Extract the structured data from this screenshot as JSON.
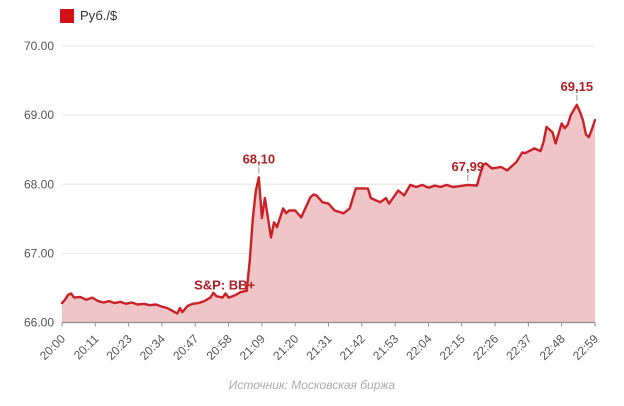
{
  "legend": {
    "label": "Руб./$"
  },
  "source_note": "Источник: Московская биржа",
  "colors": {
    "line": "#C92127",
    "fill": "#EFC5C7",
    "legend_square": "#CE1218",
    "legend_text": "#333333",
    "annotation": "#AE1E23",
    "grid": "#E6E6E6",
    "axis": "#8C8C8C",
    "tick_text": "#555555",
    "leader": "#999999",
    "source_text": "#ABABAB"
  },
  "chart_data": {
    "type": "area",
    "series_name": "Руб./$",
    "title": "",
    "xlabel": "",
    "ylabel": "",
    "ylim": [
      66,
      70
    ],
    "yticks": [
      66,
      67,
      68,
      69,
      70
    ],
    "ytick_labels": [
      "66.00",
      "67.00",
      "68.00",
      "69.00",
      "70.00"
    ],
    "xticks": [
      "20:00",
      "20:11",
      "20:23",
      "20:34",
      "20:47",
      "20:58",
      "21:09",
      "21:20",
      "21:31",
      "21:42",
      "21:53",
      "22:04",
      "22:15",
      "22:26",
      "22:37",
      "22:48",
      "22:59"
    ],
    "grid": "horizontal",
    "legend_position": "top-left",
    "points": [
      [
        "20:00",
        66.28
      ],
      [
        "20:01",
        66.33
      ],
      [
        "20:02",
        66.4
      ],
      [
        "20:03",
        66.42
      ],
      [
        "20:04",
        66.36
      ],
      [
        "20:06",
        66.37
      ],
      [
        "20:08",
        66.33
      ],
      [
        "20:10",
        66.36
      ],
      [
        "20:12",
        66.31
      ],
      [
        "20:14",
        66.29
      ],
      [
        "20:16",
        66.31
      ],
      [
        "20:18",
        66.28
      ],
      [
        "20:20",
        66.3
      ],
      [
        "20:22",
        66.27
      ],
      [
        "20:24",
        66.29
      ],
      [
        "20:26",
        66.26
      ],
      [
        "20:28",
        66.27
      ],
      [
        "20:30",
        66.25
      ],
      [
        "20:32",
        66.26
      ],
      [
        "20:34",
        66.23
      ],
      [
        "20:36",
        66.21
      ],
      [
        "20:38",
        66.17
      ],
      [
        "20:40",
        66.13
      ],
      [
        "20:41",
        66.21
      ],
      [
        "20:42",
        66.15
      ],
      [
        "20:44",
        66.24
      ],
      [
        "20:46",
        66.27
      ],
      [
        "20:48",
        66.28
      ],
      [
        "20:50",
        66.31
      ],
      [
        "20:52",
        66.36
      ],
      [
        "20:53",
        66.43
      ],
      [
        "20:54",
        66.38
      ],
      [
        "20:56",
        66.36
      ],
      [
        "20:57",
        66.42
      ],
      [
        "20:58",
        66.36
      ],
      [
        "21:00",
        66.39
      ],
      [
        "21:02",
        66.44
      ],
      [
        "21:04",
        66.46
      ],
      [
        "21:05",
        66.9
      ],
      [
        "21:06",
        67.5
      ],
      [
        "21:07",
        67.9
      ],
      [
        "21:08",
        68.1
      ],
      [
        "21:09",
        67.51
      ],
      [
        "21:10",
        67.8
      ],
      [
        "21:12",
        67.23
      ],
      [
        "21:13",
        67.45
      ],
      [
        "21:14",
        67.38
      ],
      [
        "21:16",
        67.65
      ],
      [
        "21:17",
        67.58
      ],
      [
        "21:18",
        67.62
      ],
      [
        "21:20",
        67.62
      ],
      [
        "21:22",
        67.52
      ],
      [
        "21:25",
        67.81
      ],
      [
        "21:26",
        67.85
      ],
      [
        "21:27",
        67.84
      ],
      [
        "21:29",
        67.74
      ],
      [
        "21:31",
        67.72
      ],
      [
        "21:33",
        67.62
      ],
      [
        "21:36",
        67.58
      ],
      [
        "21:38",
        67.65
      ],
      [
        "21:40",
        67.94
      ],
      [
        "21:44",
        67.94
      ],
      [
        "21:45",
        67.8
      ],
      [
        "21:48",
        67.74
      ],
      [
        "21:50",
        67.8
      ],
      [
        "21:51",
        67.72
      ],
      [
        "21:54",
        67.91
      ],
      [
        "21:56",
        67.84
      ],
      [
        "21:58",
        67.99
      ],
      [
        "22:00",
        67.96
      ],
      [
        "22:02",
        67.99
      ],
      [
        "22:04",
        67.95
      ],
      [
        "22:06",
        67.98
      ],
      [
        "22:08",
        67.96
      ],
      [
        "22:10",
        67.99
      ],
      [
        "22:12",
        67.96
      ],
      [
        "22:14",
        67.97
      ],
      [
        "22:17",
        67.99
      ],
      [
        "22:20",
        67.98
      ],
      [
        "22:22",
        68.28
      ],
      [
        "22:23",
        68.3
      ],
      [
        "22:25",
        68.23
      ],
      [
        "22:28",
        68.25
      ],
      [
        "22:30",
        68.2
      ],
      [
        "22:33",
        68.32
      ],
      [
        "22:35",
        68.46
      ],
      [
        "22:36",
        68.45
      ],
      [
        "22:39",
        68.52
      ],
      [
        "22:41",
        68.48
      ],
      [
        "22:42",
        68.61
      ],
      [
        "22:43",
        68.83
      ],
      [
        "22:45",
        68.75
      ],
      [
        "22:46",
        68.59
      ],
      [
        "22:48",
        68.88
      ],
      [
        "22:49",
        68.81
      ],
      [
        "22:50",
        68.86
      ],
      [
        "22:51",
        69.0
      ],
      [
        "22:53",
        69.15
      ],
      [
        "22:54",
        69.05
      ],
      [
        "22:55",
        68.93
      ],
      [
        "22:56",
        68.72
      ],
      [
        "22:57",
        68.68
      ],
      [
        "22:58",
        68.8
      ],
      [
        "22:59",
        68.93
      ]
    ],
    "annotations": [
      {
        "text": "S&P: BB+",
        "time": "21:00",
        "value": 66.55,
        "style": "event",
        "dx": -10
      },
      {
        "text": "68,10",
        "time": "21:08",
        "value": 68.1,
        "style": "value"
      },
      {
        "text": "67,99",
        "time": "22:17",
        "value": 67.99,
        "style": "value"
      },
      {
        "text": "69,15",
        "time": "22:53",
        "value": 69.15,
        "style": "value"
      }
    ]
  }
}
